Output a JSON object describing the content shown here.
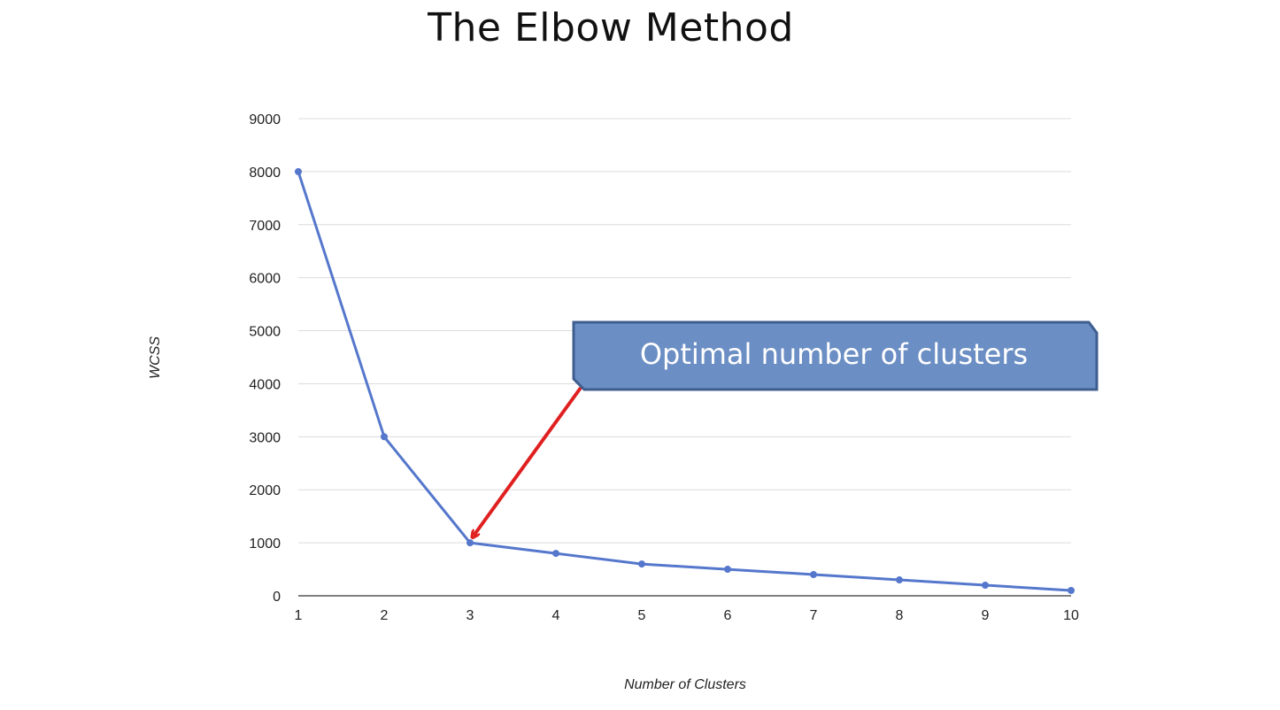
{
  "title": "The Elbow Method",
  "chart_data": {
    "type": "line",
    "x": [
      1,
      2,
      3,
      4,
      5,
      6,
      7,
      8,
      9,
      10
    ],
    "series": [
      {
        "values": [
          8000,
          3000,
          1000,
          800,
          600,
          500,
          400,
          300,
          200,
          100
        ]
      }
    ],
    "xlabel": "Number of Clusters",
    "ylabel": "WCSS",
    "xlim": [
      1,
      10
    ],
    "ylim": [
      0,
      9000
    ],
    "y_ticks": [
      0,
      1000,
      2000,
      3000,
      4000,
      5000,
      6000,
      7000,
      8000,
      9000
    ],
    "x_ticks": [
      1,
      2,
      3,
      4,
      5,
      6,
      7,
      8,
      9,
      10
    ],
    "grid": true,
    "line_color": "#5577cc",
    "annotation": {
      "text": "Optimal number of clusters",
      "target_x": 3,
      "target_y": 1000,
      "box_color": "#6b8ec4",
      "arrow_color": "#e02020"
    }
  }
}
